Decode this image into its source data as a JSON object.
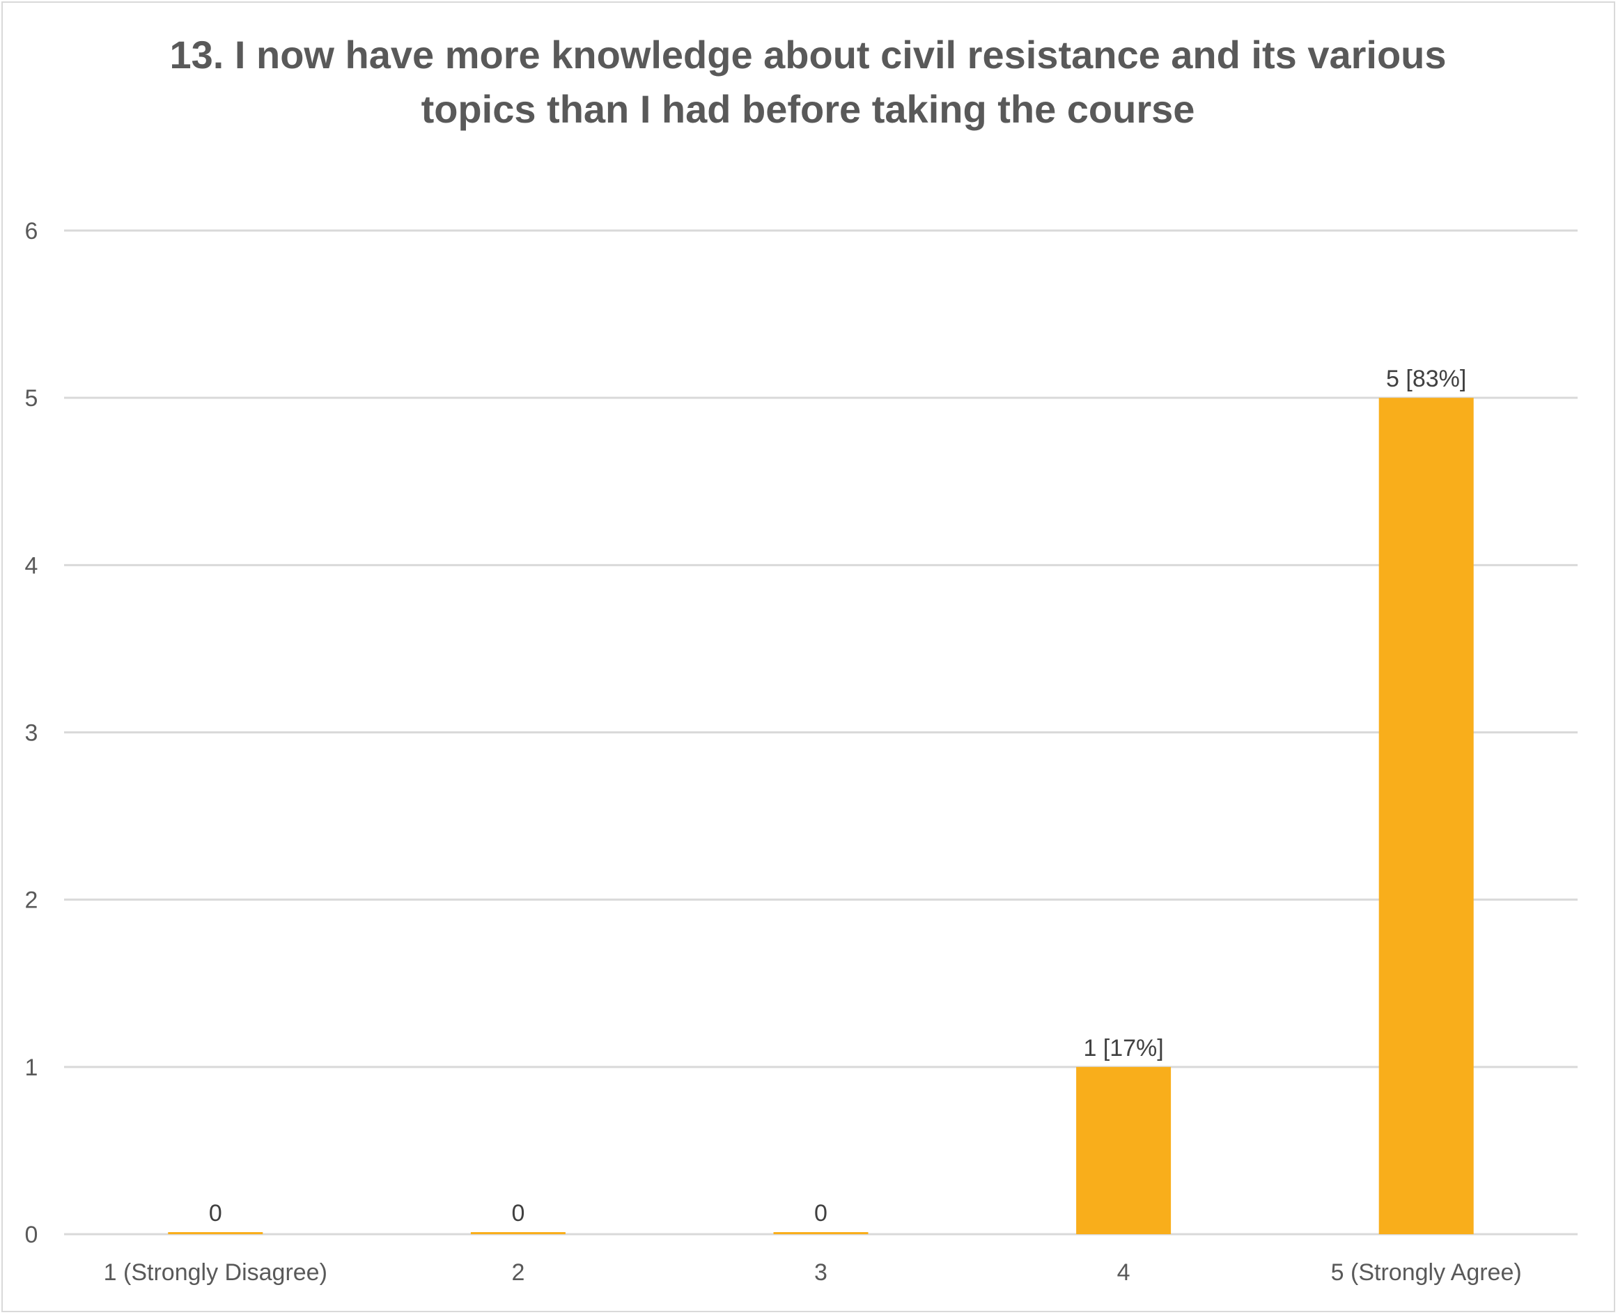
{
  "chart_data": {
    "type": "bar",
    "title": "13. I now have more knowledge about civil resistance and its various topics than I had before taking the course",
    "xlabel": "",
    "ylabel": "",
    "categories": [
      "1 (Strongly Disagree)",
      "2",
      "3",
      "4",
      "5 (Strongly Agree)"
    ],
    "values": [
      0,
      0,
      0,
      1,
      5
    ],
    "data_labels": [
      "0",
      "0",
      "0",
      "1 [17%]",
      "5 [83%]"
    ],
    "ylim": [
      0,
      6
    ],
    "yticks": [
      0,
      1,
      2,
      3,
      4,
      5,
      6
    ],
    "grid": true,
    "legend": "none",
    "bar_color": "#F9AE1B",
    "gridline_color": "#d9d9d9"
  }
}
